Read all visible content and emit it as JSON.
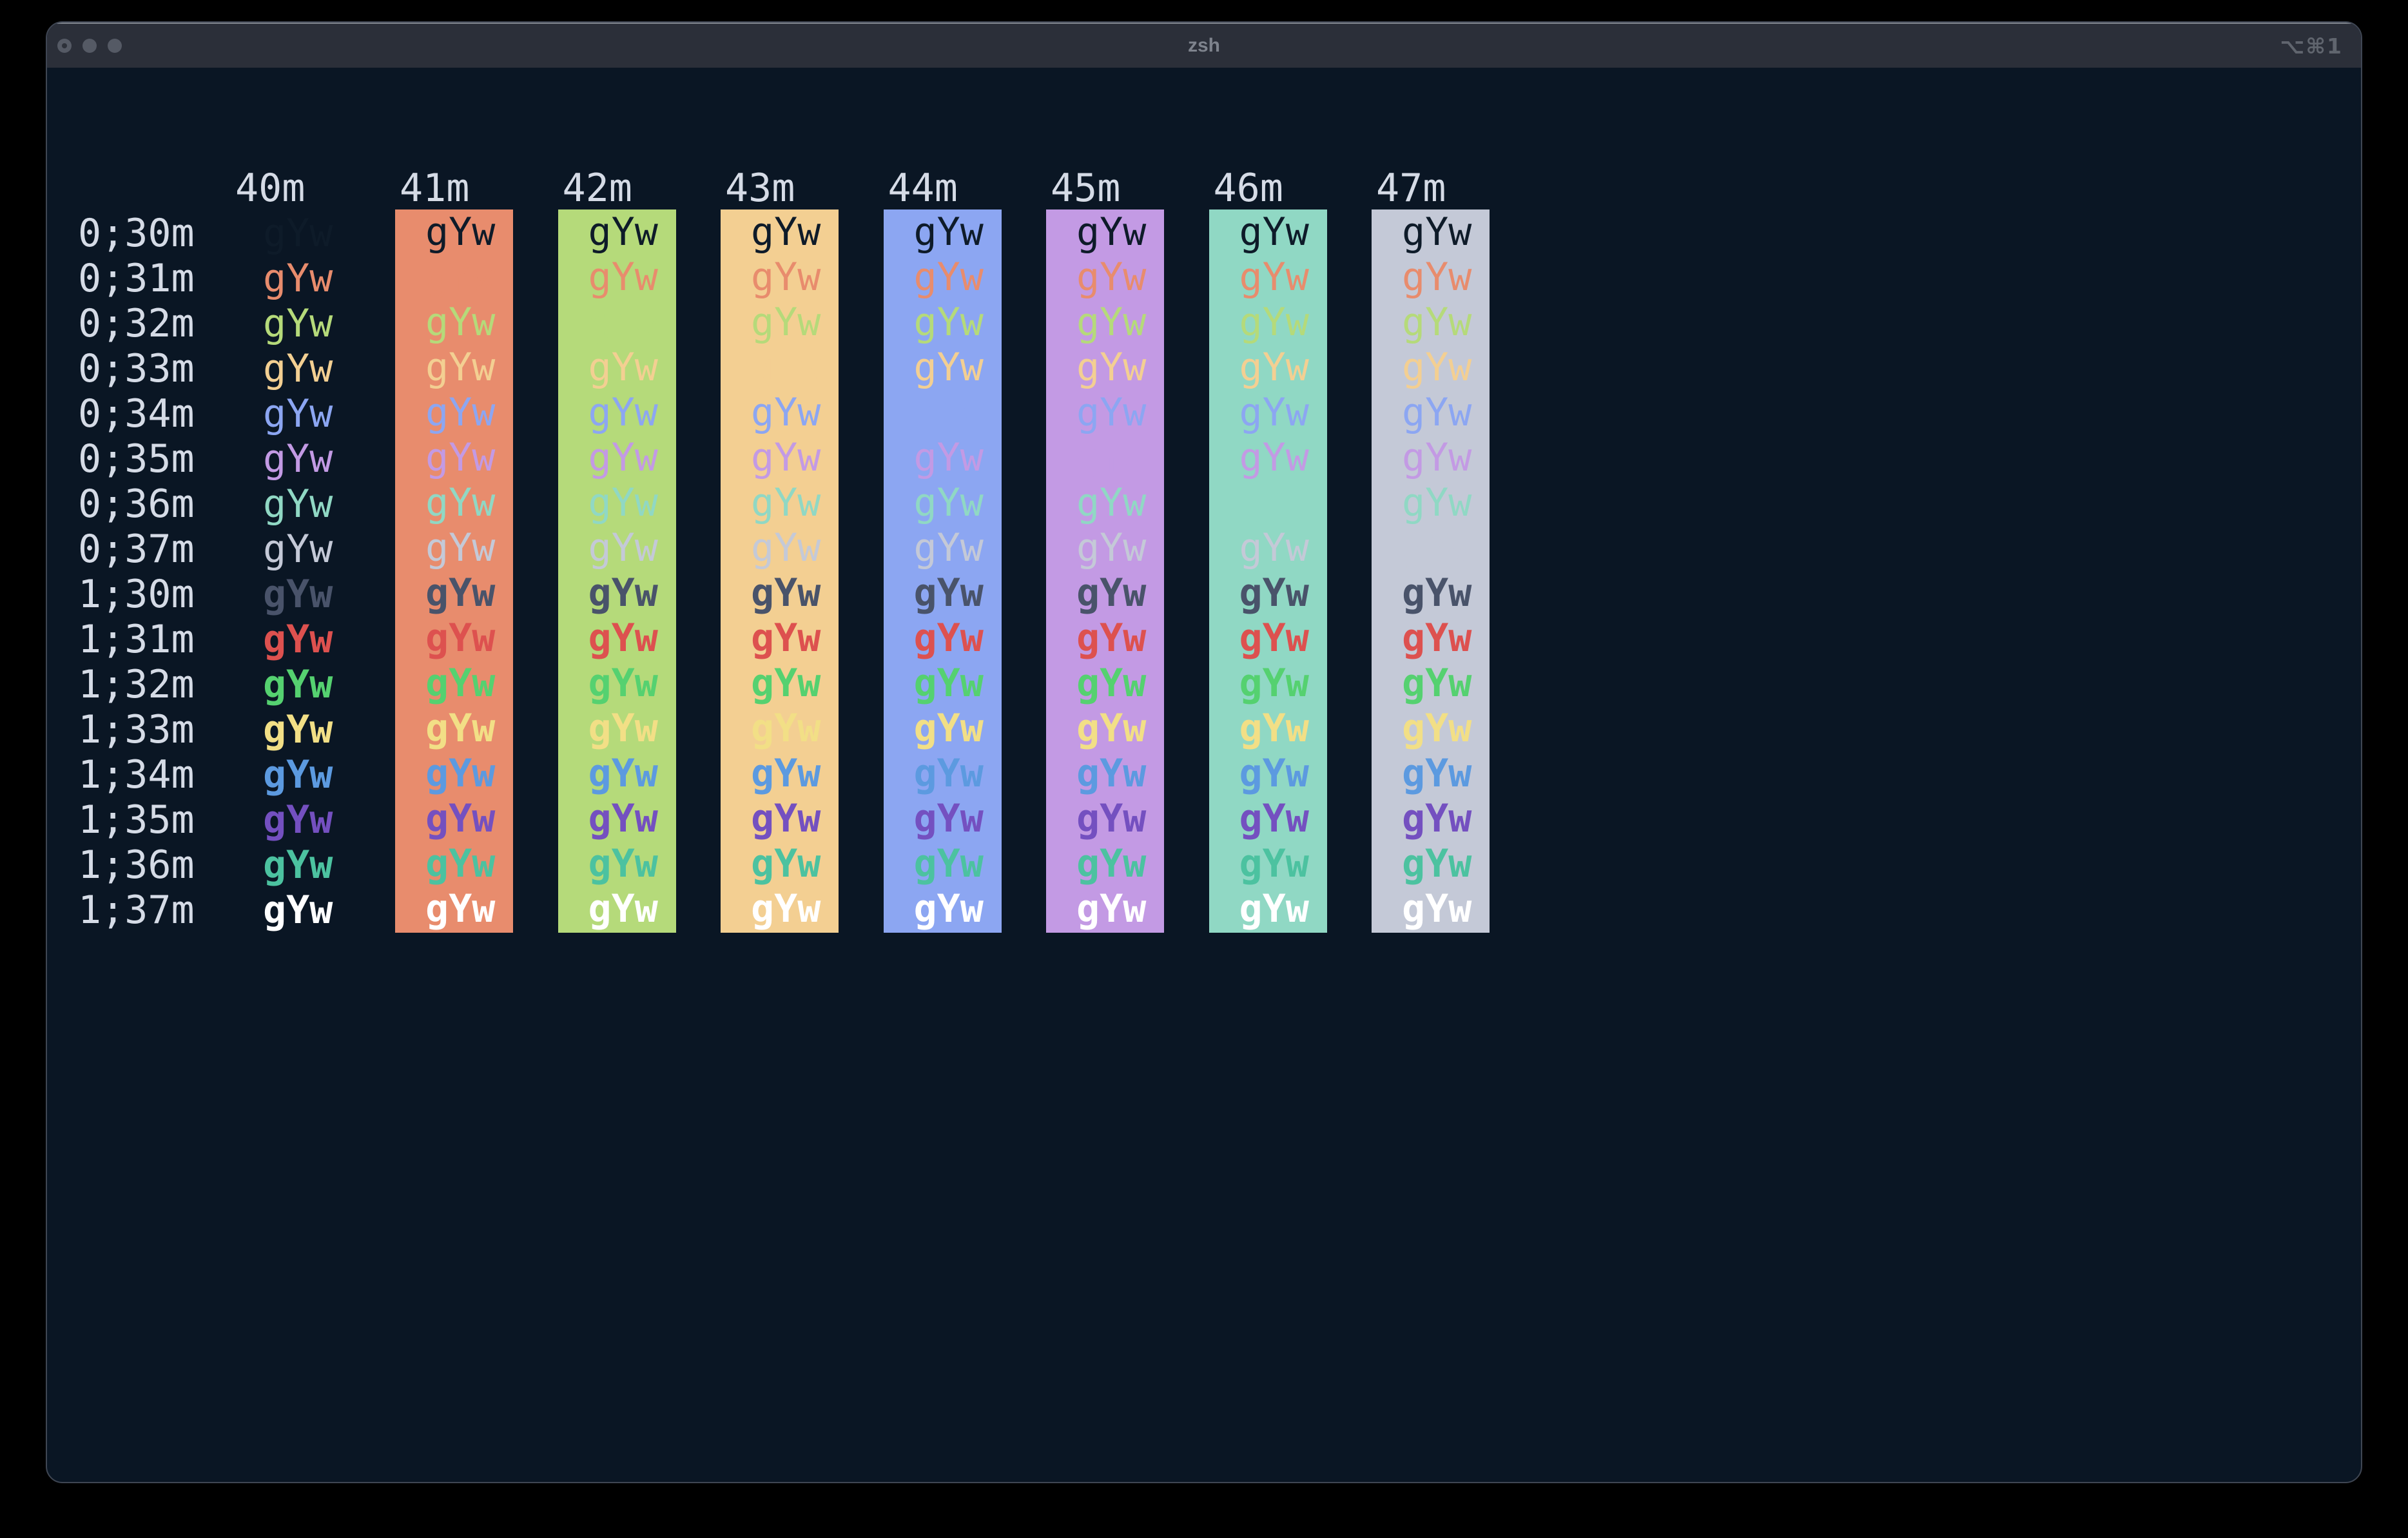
{
  "window": {
    "title": "zsh",
    "right_shortcut": "⌥⌘1",
    "traffic_lights": [
      "close",
      "minimize",
      "zoom"
    ]
  },
  "palette": {
    "terminal_background": "#0a1624",
    "default_foreground": "#d5dbe6",
    "titlebar_background": "#2b2f39",
    "window_border": "#3f4653"
  },
  "terminal": {
    "cell_text": "gYw",
    "columns": [
      {
        "header": "40m",
        "bg": null
      },
      {
        "header": "41m",
        "bg": "#e88c6d"
      },
      {
        "header": "42m",
        "bg": "#b5da7a"
      },
      {
        "header": "43m",
        "bg": "#f3cf92"
      },
      {
        "header": "44m",
        "bg": "#8ca6f2"
      },
      {
        "header": "45m",
        "bg": "#c39ae4"
      },
      {
        "header": "46m",
        "bg": "#90d8c4"
      },
      {
        "header": "47m",
        "bg": "#c4c9d7"
      }
    ],
    "rows": [
      {
        "label": "0;30m",
        "fg": "#0e1b29",
        "bold": false
      },
      {
        "label": "0;31m",
        "fg": "#e88c6d",
        "bold": false
      },
      {
        "label": "0;32m",
        "fg": "#b5da7a",
        "bold": false
      },
      {
        "label": "0;33m",
        "fg": "#f3cf92",
        "bold": false
      },
      {
        "label": "0;34m",
        "fg": "#8ca6f2",
        "bold": false
      },
      {
        "label": "0;35m",
        "fg": "#c39ae4",
        "bold": false
      },
      {
        "label": "0;36m",
        "fg": "#90d8c4",
        "bold": false
      },
      {
        "label": "0;37m",
        "fg": "#c4c9d7",
        "bold": false
      },
      {
        "label": "1;30m",
        "fg": "#49536a",
        "bold": true
      },
      {
        "label": "1;31m",
        "fg": "#dd514f",
        "bold": true
      },
      {
        "label": "1;32m",
        "fg": "#55d170",
        "bold": true
      },
      {
        "label": "1;33m",
        "fg": "#f2df86",
        "bold": true
      },
      {
        "label": "1;34m",
        "fg": "#5c9ae0",
        "bold": true
      },
      {
        "label": "1;35m",
        "fg": "#7450c0",
        "bold": true
      },
      {
        "label": "1;36m",
        "fg": "#4cc2a0",
        "bold": true
      },
      {
        "label": "1;37m",
        "fg": "#ffffff",
        "bold": true
      }
    ]
  }
}
